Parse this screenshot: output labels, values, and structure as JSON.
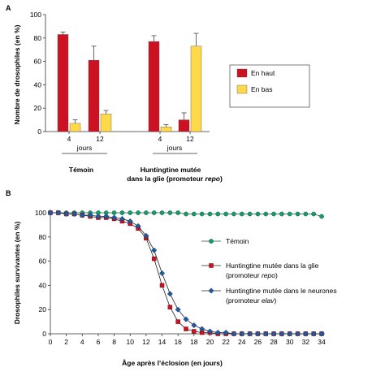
{
  "figure": {
    "panelA": {
      "letter": "A"
    },
    "panelB": {
      "letter": "B"
    }
  },
  "chart_data": [
    {
      "type": "bar",
      "ylabel": "Nombre de drosophiles (en %)",
      "ylim": [
        0,
        100
      ],
      "yticks": [
        0,
        20,
        40,
        60,
        80,
        100
      ],
      "groups": [
        {
          "name": "Témoin",
          "label_lines": [
            "Témoin"
          ]
        },
        {
          "name": "Huntingtine mutée dans la glie (promoteur repo)",
          "label_lines": [
            "Huntingtine mutée",
            "dans la glie (promoteur "
          ],
          "label_italic": "repo",
          "label_end": ")"
        }
      ],
      "categories": [
        "4",
        "12",
        "4",
        "12"
      ],
      "category_group": [
        0,
        0,
        1,
        1
      ],
      "days_word": "jours",
      "series": [
        {
          "name": "En haut",
          "color": "#cc1122",
          "values": [
            83,
            61,
            77,
            10
          ],
          "errors": [
            2,
            12,
            5,
            6
          ]
        },
        {
          "name": "En bas",
          "color": "#ffd94a",
          "values": [
            7,
            15,
            4,
            73
          ],
          "errors": [
            3,
            3,
            2,
            11
          ]
        }
      ],
      "legend_position": "right"
    },
    {
      "type": "line",
      "ylabel": "Drosophiles survivantes (en %)",
      "xlabel": "Âge après l’éclosion (en jours)",
      "xlim": [
        0,
        34
      ],
      "ylim": [
        0,
        100
      ],
      "xticks": [
        0,
        2,
        4,
        6,
        8,
        10,
        12,
        14,
        16,
        18,
        20,
        22,
        24,
        26,
        28,
        30,
        32,
        34
      ],
      "yticks": [
        0,
        20,
        40,
        60,
        80,
        100
      ],
      "series": [
        {
          "name": "Témoin",
          "legend_lines": [
            "Témoin"
          ],
          "color": "#1a9a6a",
          "marker": "circle",
          "x": [
            0,
            1,
            2,
            3,
            4,
            5,
            6,
            7,
            8,
            9,
            10,
            11,
            12,
            13,
            14,
            15,
            16,
            17,
            18,
            19,
            20,
            21,
            22,
            23,
            24,
            25,
            26,
            27,
            28,
            29,
            30,
            31,
            32,
            33,
            34
          ],
          "y": [
            100,
            100,
            100,
            100,
            100,
            100,
            100,
            100,
            100,
            100,
            100,
            100,
            100,
            100,
            100,
            100,
            100,
            99,
            99,
            99,
            99,
            99,
            99,
            99,
            99,
            99,
            99,
            99,
            99,
            99,
            99,
            99,
            99,
            99,
            97
          ]
        },
        {
          "name": "Huntingtine mutée dans la glie (promoteur repo)",
          "legend_lines": [
            "Huntingtine mutée dans la glie",
            "(promoteur "
          ],
          "legend_italic": "repo",
          "legend_end": ")",
          "color": "#cc1122",
          "marker": "square",
          "x": [
            0,
            1,
            2,
            3,
            4,
            5,
            6,
            7,
            8,
            9,
            10,
            11,
            12,
            13,
            14,
            15,
            16,
            17,
            18,
            19,
            20,
            21,
            22,
            23,
            24,
            25,
            26,
            27,
            28,
            29,
            30,
            31,
            32,
            33,
            34
          ],
          "y": [
            100,
            100,
            99,
            99,
            98,
            97,
            96,
            96,
            95,
            93,
            91,
            87,
            79,
            62,
            40,
            22,
            10,
            4,
            2,
            1,
            1,
            0,
            0,
            0,
            0,
            0,
            0,
            0,
            0,
            0,
            0,
            0,
            0,
            0,
            0
          ]
        },
        {
          "name": "Huntingtine mutée dans le neurones (promoteur elav)",
          "legend_lines": [
            "Huntingtine mutée dans le neurones",
            "(promoteur "
          ],
          "legend_italic": "elav",
          "legend_end": ")",
          "color": "#1f5a9e",
          "marker": "diamond",
          "x": [
            0,
            1,
            2,
            3,
            4,
            5,
            6,
            7,
            8,
            9,
            10,
            11,
            12,
            13,
            14,
            15,
            16,
            17,
            18,
            19,
            20,
            21,
            22,
            23,
            24,
            25,
            26,
            27,
            28,
            29,
            30,
            31,
            32,
            33,
            34
          ],
          "y": [
            100,
            100,
            99,
            99,
            98,
            98,
            97,
            97,
            96,
            95,
            93,
            89,
            81,
            69,
            50,
            33,
            20,
            12,
            7,
            4,
            2,
            1,
            1,
            0,
            0,
            0,
            0,
            0,
            0,
            0,
            0,
            0,
            0,
            0,
            0
          ]
        }
      ],
      "legend_position": "right"
    }
  ]
}
